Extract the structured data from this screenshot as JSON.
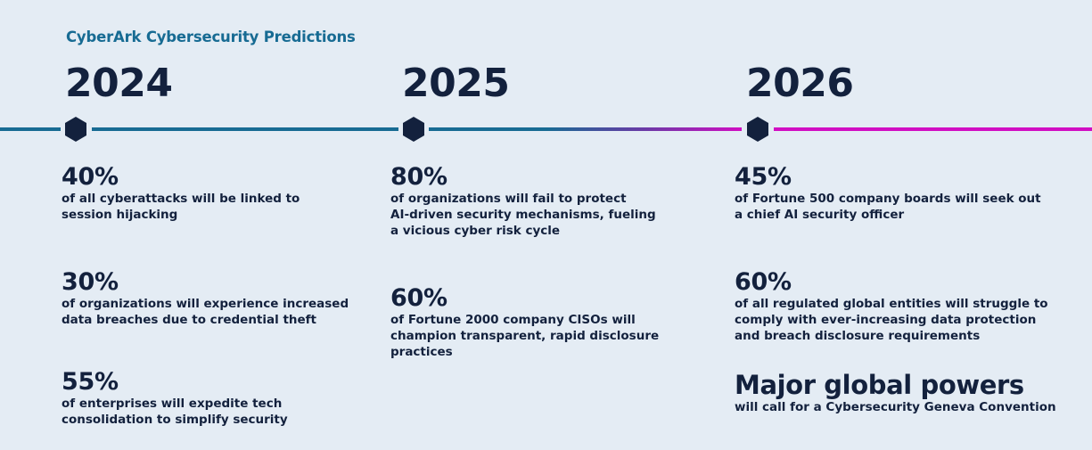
{
  "header": {
    "title": "CyberArk Cybersecurity Predictions"
  },
  "colors": {
    "background": "#e4ecf4",
    "title_blue": "#176b93",
    "navy": "#13213d",
    "line_blue": "#176b93",
    "line_magenta": "#d10ec3"
  },
  "columns": [
    {
      "year": "2024",
      "stats": [
        {
          "value": "40%",
          "text": "of all cyberattacks will be linked to\nsession hijacking"
        },
        {
          "value": "30%",
          "text": "of organizations will experience increased\ndata breaches due to credential theft"
        },
        {
          "value": "55%",
          "text": "of enterprises will expedite tech\nconsolidation to simplify security"
        }
      ]
    },
    {
      "year": "2025",
      "stats": [
        {
          "value": "80%",
          "text": "of organizations will fail to protect\nAI-driven security mechanisms, fueling\na vicious cyber risk cycle"
        },
        {
          "value": "60%",
          "text": "of Fortune 2000 company CISOs will\nchampion transparent, rapid disclosure\npractices"
        }
      ]
    },
    {
      "year": "2026",
      "stats": [
        {
          "value": "45%",
          "text": "of Fortune 500 company boards will seek out\na chief AI security officer"
        },
        {
          "value": "60%",
          "text": "of all regulated global entities will struggle to\ncomply with ever-increasing data protection\nand breach disclosure requirements"
        },
        {
          "value": "Major global powers",
          "text": "will call for a Cybersecurity Geneva Convention"
        }
      ]
    }
  ]
}
